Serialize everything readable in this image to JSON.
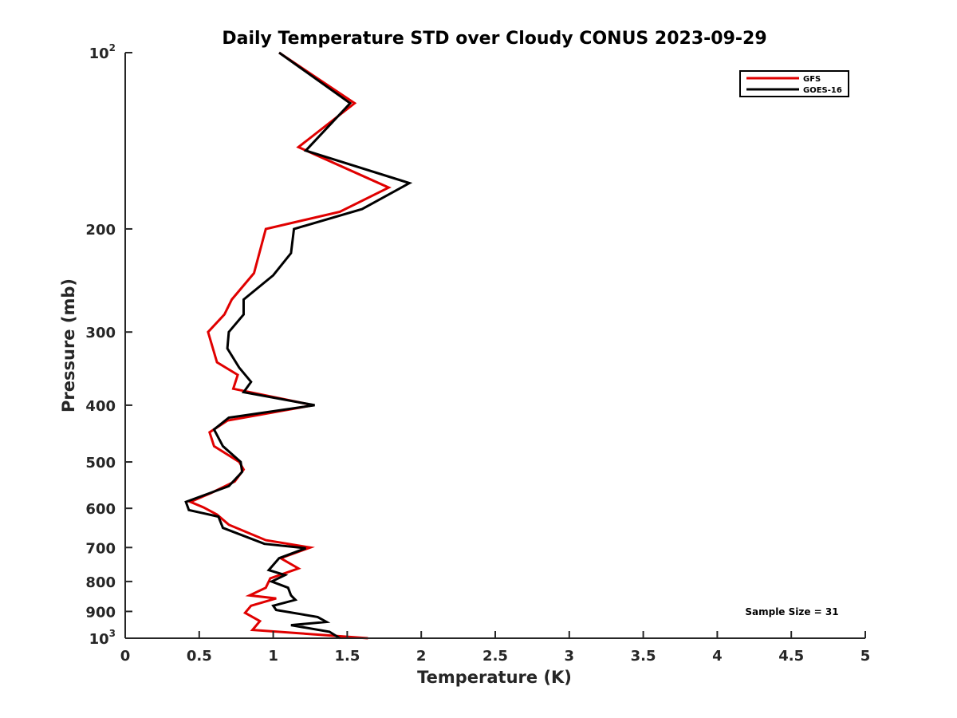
{
  "chart_data": {
    "type": "line",
    "title": "Daily Temperature STD over Cloudy CONUS 2023-09-29",
    "xlabel": "Temperature (K)",
    "ylabel": "Pressure (mb)",
    "xlim": [
      0,
      5
    ],
    "ylim": [
      100,
      1000
    ],
    "y_scale": "log",
    "y_reversed": true,
    "x_ticks": [
      "0",
      "0.5",
      "1",
      "1.5",
      "2",
      "2.5",
      "3",
      "3.5",
      "4",
      "4.5",
      "5"
    ],
    "y_ticks": [
      {
        "value": 100,
        "base": "10",
        "exp": "2"
      },
      {
        "value": 200,
        "label": "200"
      },
      {
        "value": 300,
        "label": "300"
      },
      {
        "value": 400,
        "label": "400"
      },
      {
        "value": 500,
        "label": "500"
      },
      {
        "value": 600,
        "label": "600"
      },
      {
        "value": 700,
        "label": "700"
      },
      {
        "value": 800,
        "label": "800"
      },
      {
        "value": 900,
        "label": "900"
      },
      {
        "value": 1000,
        "base": "10",
        "exp": "3"
      }
    ],
    "grid": false,
    "legend_position": "top-right",
    "annotation": "Sample Size = 31",
    "series": [
      {
        "name": "GFS",
        "color": "#e00000",
        "points": [
          [
            1.04,
            100
          ],
          [
            1.55,
            122
          ],
          [
            1.17,
            145
          ],
          [
            1.78,
            170
          ],
          [
            1.45,
            187
          ],
          [
            0.95,
            200
          ],
          [
            0.87,
            238
          ],
          [
            0.72,
            264
          ],
          [
            0.67,
            280
          ],
          [
            0.56,
            300
          ],
          [
            0.62,
            338
          ],
          [
            0.76,
            355
          ],
          [
            0.73,
            375
          ],
          [
            1.27,
            400
          ],
          [
            0.69,
            425
          ],
          [
            0.57,
            445
          ],
          [
            0.6,
            470
          ],
          [
            0.77,
            500
          ],
          [
            0.8,
            515
          ],
          [
            0.74,
            540
          ],
          [
            0.58,
            565
          ],
          [
            0.44,
            585
          ],
          [
            0.53,
            598
          ],
          [
            0.62,
            615
          ],
          [
            0.7,
            640
          ],
          [
            0.95,
            680
          ],
          [
            1.25,
            700
          ],
          [
            1.05,
            730
          ],
          [
            1.17,
            760
          ],
          [
            0.98,
            790
          ],
          [
            0.95,
            820
          ],
          [
            0.84,
            845
          ],
          [
            1.02,
            855
          ],
          [
            0.85,
            880
          ],
          [
            0.81,
            905
          ],
          [
            0.91,
            935
          ],
          [
            0.86,
            968
          ],
          [
            1.64,
            1000
          ]
        ]
      },
      {
        "name": "GOES-16",
        "color": "#000000",
        "points": [
          [
            1.04,
            100
          ],
          [
            1.52,
            122
          ],
          [
            1.22,
            147
          ],
          [
            1.92,
            167
          ],
          [
            1.6,
            185
          ],
          [
            1.14,
            200
          ],
          [
            1.12,
            220
          ],
          [
            1.0,
            240
          ],
          [
            0.8,
            264
          ],
          [
            0.8,
            280
          ],
          [
            0.7,
            300
          ],
          [
            0.69,
            320
          ],
          [
            0.77,
            345
          ],
          [
            0.85,
            365
          ],
          [
            0.8,
            380
          ],
          [
            1.28,
            400
          ],
          [
            0.7,
            420
          ],
          [
            0.6,
            440
          ],
          [
            0.66,
            470
          ],
          [
            0.78,
            500
          ],
          [
            0.79,
            520
          ],
          [
            0.7,
            550
          ],
          [
            0.41,
            585
          ],
          [
            0.43,
            604
          ],
          [
            0.63,
            620
          ],
          [
            0.66,
            648
          ],
          [
            0.94,
            690
          ],
          [
            1.22,
            702
          ],
          [
            1.04,
            730
          ],
          [
            0.97,
            765
          ],
          [
            1.08,
            780
          ],
          [
            0.99,
            800
          ],
          [
            1.1,
            820
          ],
          [
            1.12,
            845
          ],
          [
            1.15,
            860
          ],
          [
            1.0,
            880
          ],
          [
            1.02,
            895
          ],
          [
            1.3,
            920
          ],
          [
            1.36,
            938
          ],
          [
            1.12,
            950
          ],
          [
            1.38,
            975
          ],
          [
            1.45,
            1000
          ]
        ]
      }
    ]
  }
}
